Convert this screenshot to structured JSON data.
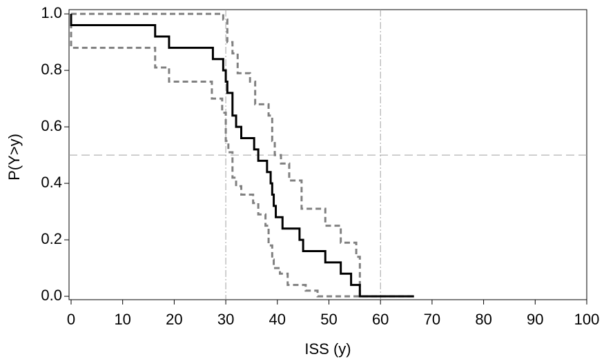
{
  "chart_data": {
    "type": "step",
    "step": "post",
    "x_label": "ISS (y)",
    "y_label": "P(Y>y)",
    "xlim": [
      -0.4,
      100
    ],
    "ylim": [
      -0.012,
      1.015
    ],
    "xticks": [
      0,
      10,
      20,
      30,
      40,
      50,
      60,
      70,
      80,
      90,
      100
    ],
    "yticks": [
      {
        "value": 0,
        "label": "0.0"
      },
      0.2,
      0.4,
      0.6,
      0.8,
      {
        "value": 1,
        "label": "1.0"
      }
    ],
    "reference_lines": {
      "y": [
        0.5
      ],
      "x": [
        30,
        60
      ],
      "color": "#a0a0a0"
    },
    "series": [
      {
        "color": "#808080",
        "dashed": true,
        "x": [
          0,
          29.5,
          30.3,
          31.3,
          32.3,
          34.7,
          35.7,
          38.3,
          39,
          39.5,
          40.7,
          42.3,
          44.7,
          49.3,
          52.3,
          55.3,
          56,
          66.5
        ],
        "values": [
          1.0,
          0.98,
          0.9,
          0.86,
          0.79,
          0.76,
          0.68,
          0.64,
          0.55,
          0.5,
          0.47,
          0.41,
          0.31,
          0.25,
          0.19,
          0.14,
          0,
          0
        ]
      },
      {
        "color": "#808080",
        "dashed": true,
        "x": [
          0,
          0,
          16.3,
          19,
          27.3,
          29.3,
          30,
          30.5,
          31.3,
          32,
          33,
          35.3,
          36.3,
          37.7,
          38.3,
          39,
          39.3,
          40.5,
          42,
          45.5,
          47.8,
          56
        ],
        "values": [
          1.0,
          0.88,
          0.81,
          0.76,
          0.7,
          0.65,
          0.55,
          0.51,
          0.42,
          0.39,
          0.36,
          0.33,
          0.29,
          0.25,
          0.18,
          0.13,
          0.1,
          0.08,
          0.04,
          0.02,
          0,
          0
        ]
      },
      {
        "color": "#000000",
        "dashed": false,
        "x": [
          0,
          0,
          16.3,
          19,
          27.5,
          29.5,
          30,
          30.3,
          31.3,
          32,
          33,
          35.5,
          36.3,
          38,
          38.7,
          39,
          39.3,
          39.7,
          41,
          44.3,
          45,
          49.3,
          52.3,
          54.3,
          56,
          66.5
        ],
        "values": [
          1.0,
          0.96,
          0.92,
          0.88,
          0.84,
          0.8,
          0.76,
          0.72,
          0.64,
          0.6,
          0.56,
          0.52,
          0.48,
          0.44,
          0.4,
          0.36,
          0.32,
          0.28,
          0.24,
          0.2,
          0.16,
          0.12,
          0.08,
          0.04,
          0,
          0
        ]
      }
    ]
  }
}
